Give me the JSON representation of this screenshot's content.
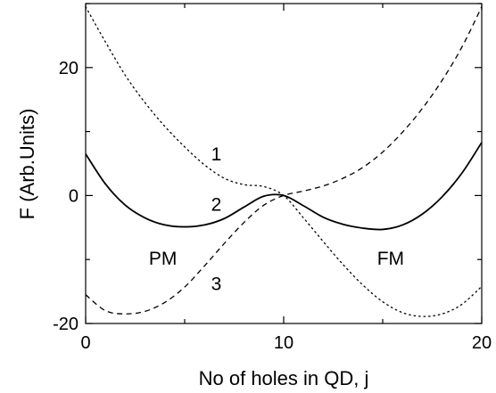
{
  "chart_data": {
    "type": "line",
    "xlabel": "No of holes in QD, j",
    "ylabel": "F (Arb.Units)",
    "xlim": [
      0,
      20
    ],
    "ylim": [
      -20,
      30
    ],
    "x_ticks": [
      "0",
      "10",
      "20"
    ],
    "y_ticks": [
      "-20",
      "0",
      "20"
    ],
    "grid": false,
    "series": [
      {
        "name": "1",
        "style": "dotted",
        "x": [
          0,
          1,
          2,
          3,
          4,
          5,
          6,
          7,
          8,
          9,
          10,
          11,
          12,
          13,
          14,
          15,
          16,
          17,
          18,
          19,
          20
        ],
        "y": [
          29.5,
          24.0,
          18.8,
          14.5,
          10.8,
          7.6,
          4.8,
          2.7,
          1.7,
          1.4,
          0.0,
          -3.5,
          -7.2,
          -10.8,
          -14.0,
          -16.6,
          -18.3,
          -18.9,
          -18.5,
          -17.0,
          -14.2
        ]
      },
      {
        "name": "2",
        "style": "solid",
        "x": [
          0,
          1,
          2,
          3,
          4,
          5,
          6,
          7,
          8,
          9,
          10,
          11,
          12,
          13,
          14,
          15,
          16,
          17,
          18,
          19,
          20
        ],
        "y": [
          6.5,
          1.8,
          -1.5,
          -3.5,
          -4.6,
          -4.9,
          -4.6,
          -3.6,
          -1.8,
          -0.1,
          0.0,
          -1.6,
          -3.4,
          -4.5,
          -5.1,
          -5.3,
          -4.6,
          -2.9,
          -0.2,
          3.5,
          8.3
        ]
      },
      {
        "name": "3",
        "style": "dashed",
        "x": [
          0,
          1,
          2,
          3,
          4,
          5,
          6,
          7,
          8,
          9,
          10,
          11,
          12,
          13,
          14,
          15,
          16,
          17,
          18,
          19,
          20
        ],
        "y": [
          -15.5,
          -18.0,
          -18.5,
          -18.1,
          -16.7,
          -14.3,
          -11.0,
          -7.5,
          -4.2,
          -1.5,
          0.0,
          0.7,
          1.5,
          2.7,
          4.4,
          6.8,
          9.9,
          13.6,
          18.0,
          23.2,
          29.5
        ]
      }
    ],
    "annotations": [
      {
        "text": "1",
        "x": 6.6,
        "y": 5.5
      },
      {
        "text": "2",
        "x": 6.6,
        "y": -2.4
      },
      {
        "text": "3",
        "x": 6.6,
        "y": -14.8
      },
      {
        "text": "PM",
        "x": 3.9,
        "y": -10.8
      },
      {
        "text": "FM",
        "x": 15.4,
        "y": -10.8
      }
    ]
  }
}
